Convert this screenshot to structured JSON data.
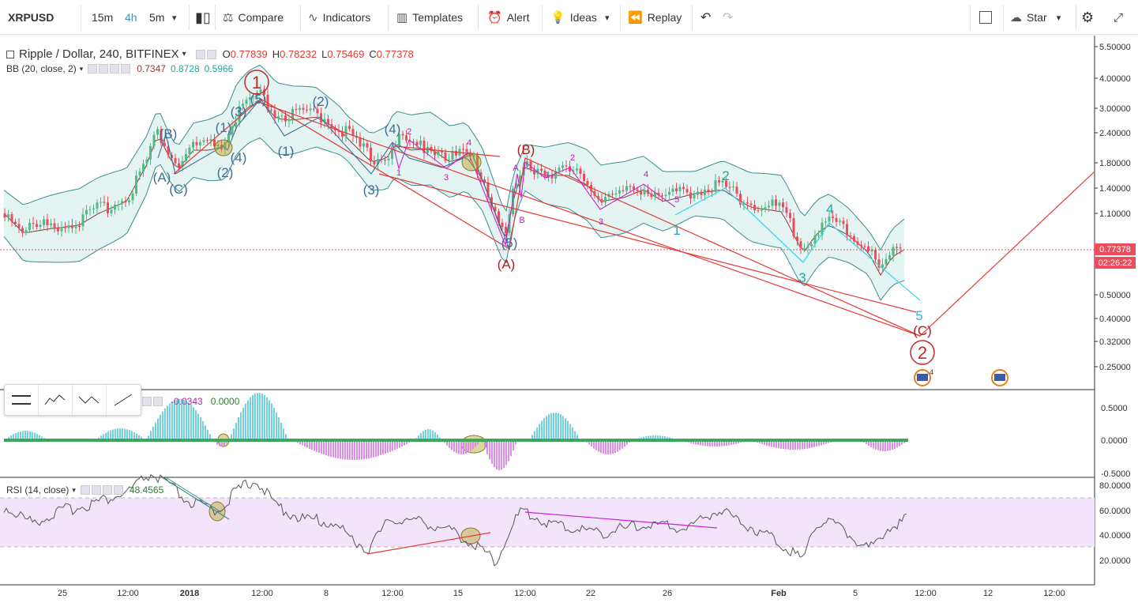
{
  "toolbar": {
    "symbol": "XRPUSD",
    "intervals": [
      "15m",
      "4h",
      "5m"
    ],
    "compare": "Compare",
    "indicators": "Indicators",
    "templates": "Templates",
    "alert": "Alert",
    "ideas": "Ideas",
    "replay": "Replay",
    "star": "Star"
  },
  "legend": {
    "title": "Ripple / Dollar, 240, BITFINEX",
    "o_label": "O",
    "o_value": "0.77839",
    "h_label": "H",
    "h_value": "0.78232",
    "l_label": "L",
    "l_value": "0.75469",
    "c_label": "C",
    "c_value": "0.77378",
    "bb_label": "BB (20, close, 2)",
    "bb_mid": "0.7347",
    "bb_upper": "0.8728",
    "bb_lower": "0.5966"
  },
  "osc": {
    "v1": "-0.0343",
    "v2": "0.0000"
  },
  "rsi": {
    "label": "RSI (14, close)",
    "value": "48.4565"
  },
  "price_axis": [
    "5.50000",
    "4.00000",
    "3.00000",
    "2.40000",
    "1.80000",
    "1.40000",
    "1.10000",
    "0.50000",
    "0.40000",
    "0.32000",
    "0.25000"
  ],
  "last_price": "0.77378",
  "countdown": "02:26:22",
  "osc_axis": [
    "0.5000",
    "0.0000",
    "-0.5000"
  ],
  "rsi_axis": [
    "80.0000",
    "60.0000",
    "40.0000",
    "20.0000"
  ],
  "time_axis": [
    "25",
    "12:00",
    "2018",
    "12:00",
    "8",
    "12:00",
    "15",
    "12:00",
    "22",
    "26",
    "Feb",
    "5",
    "12:00",
    "12",
    "12:00"
  ],
  "waves": {
    "big1": "1",
    "big2": "2",
    "A": "(A)",
    "B": "(B)",
    "C": "(C)",
    "A_paren": "(A)",
    "B_paren": "(B)",
    "C_paren": "(C)",
    "s1": "(1)",
    "s2": "(2)",
    "s3": "(3)",
    "s4": "(4)",
    "s5": "(5)",
    "t1": "1",
    "t2": "2",
    "t3": "3",
    "t4": "4",
    "t5": "5",
    "ma": "A",
    "mb": "B",
    "event_count": "4"
  },
  "colors": {
    "up": "#53b987",
    "down": "#eb4d5c",
    "bb_fill": "#e3f4f2",
    "bb_line": "#3a8f8c",
    "red_wave": "#e53935",
    "blue_wave": "#3d6e99",
    "magenta": "#d21fd2",
    "cyan": "#33d9e8"
  }
}
